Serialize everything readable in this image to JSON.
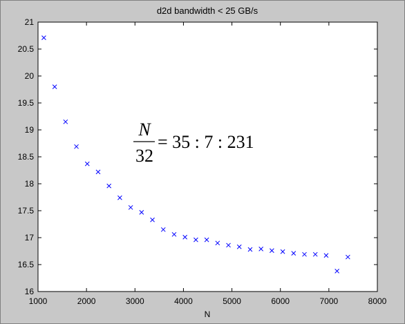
{
  "chart_data": {
    "type": "scatter",
    "title": "d2d bandwidth < 25 GB/s",
    "x_label": "N",
    "annotation": {
      "numerator": "N",
      "denominator": "32",
      "rhs": "= 35 : 7 : 231"
    },
    "color": "#0000ff",
    "marker": "x",
    "x": [
      1120,
      1344,
      1568,
      1792,
      2016,
      2240,
      2464,
      2688,
      2912,
      3136,
      3360,
      3584,
      3808,
      4032,
      4256,
      4480,
      4704,
      4928,
      5152,
      5376,
      5600,
      5824,
      6048,
      6272,
      6496,
      6720,
      6944,
      7168,
      7392
    ],
    "values": [
      20.71,
      19.8,
      19.15,
      18.69,
      18.37,
      18.22,
      17.96,
      17.74,
      17.56,
      17.47,
      17.33,
      17.15,
      17.06,
      17.01,
      16.96,
      16.96,
      16.9,
      16.86,
      16.83,
      16.78,
      16.79,
      16.76,
      16.74,
      16.71,
      16.69,
      16.69,
      16.67,
      16.38,
      16.64
    ],
    "xlim": [
      1000,
      8000
    ],
    "xticks": [
      1000,
      2000,
      3000,
      4000,
      5000,
      6000,
      7000,
      8000
    ],
    "ylim": [
      16,
      21
    ],
    "yticks": [
      16,
      16.5,
      17,
      17.5,
      18,
      18.5,
      19,
      19.5,
      20,
      20.5,
      21
    ]
  }
}
